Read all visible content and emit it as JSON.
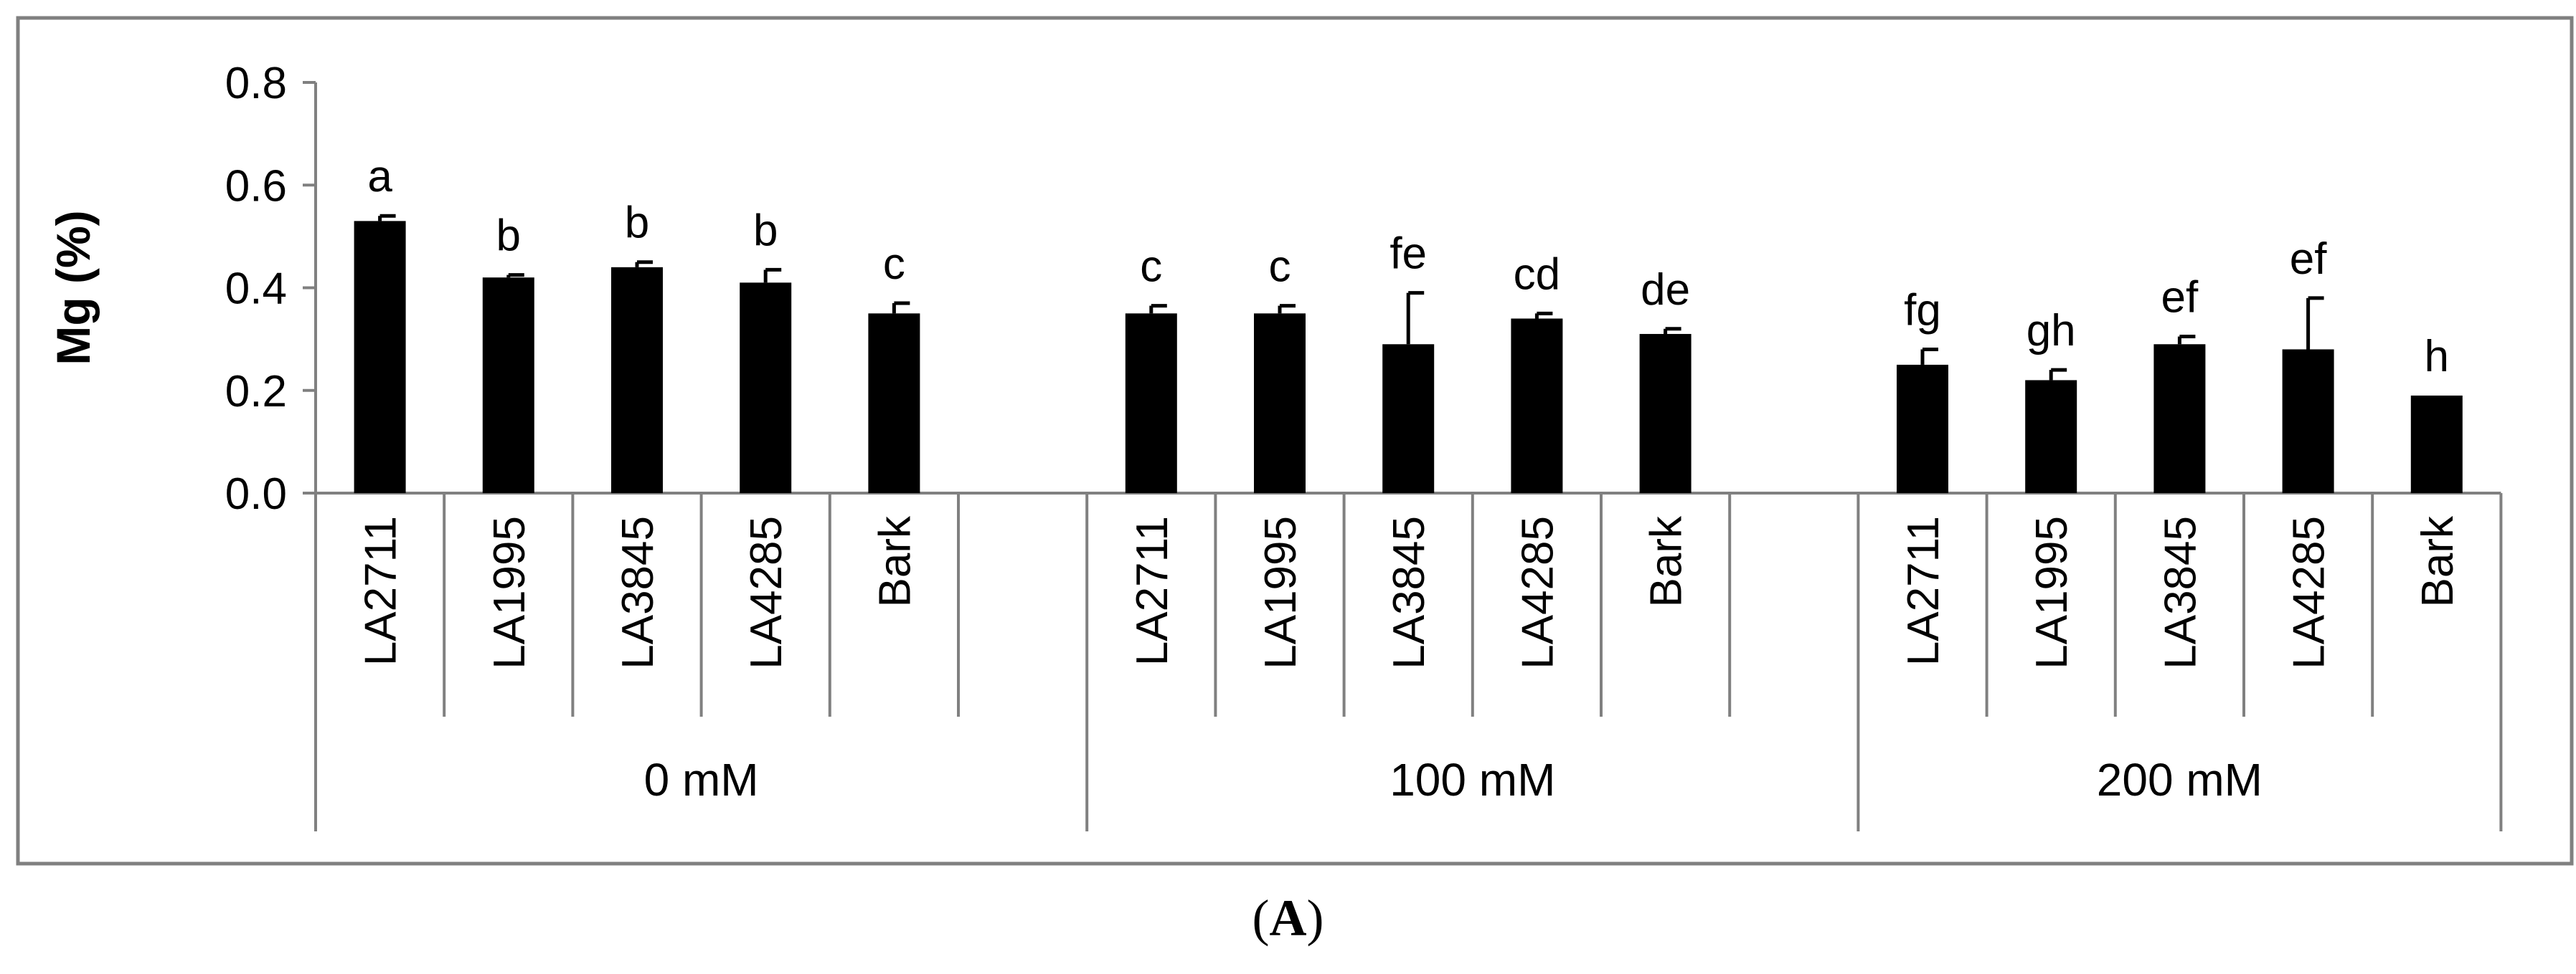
{
  "chart_data": {
    "type": "bar",
    "title": "",
    "xlabel": "",
    "ylabel": "Mg (%)",
    "ylim": [
      0.0,
      0.8
    ],
    "yticks": [
      "0.0",
      "0.2",
      "0.4",
      "0.6",
      "0.8"
    ],
    "ytick_values": [
      0.0,
      0.2,
      0.4,
      0.6,
      0.8
    ],
    "grid": false,
    "legend": "none",
    "bar_color": "#000000",
    "frame_color": "#808080",
    "groups": [
      {
        "label": "0 mM",
        "bars": [
          {
            "category": "LA2711",
            "value": 0.53,
            "error": 0.01,
            "letter": "a"
          },
          {
            "category": "LA1995",
            "value": 0.42,
            "error": 0.005,
            "letter": "b"
          },
          {
            "category": "LA3845",
            "value": 0.44,
            "error": 0.01,
            "letter": "b"
          },
          {
            "category": "LA4285",
            "value": 0.41,
            "error": 0.025,
            "letter": "b"
          },
          {
            "category": "Bark",
            "value": 0.35,
            "error": 0.02,
            "letter": "c"
          }
        ]
      },
      {
        "label": "100 mM",
        "bars": [
          {
            "category": "LA2711",
            "value": 0.35,
            "error": 0.015,
            "letter": "c"
          },
          {
            "category": "LA1995",
            "value": 0.35,
            "error": 0.015,
            "letter": "c"
          },
          {
            "category": "LA3845",
            "value": 0.29,
            "error": 0.1,
            "letter": "fe"
          },
          {
            "category": "LA4285",
            "value": 0.34,
            "error": 0.01,
            "letter": "cd"
          },
          {
            "category": "Bark",
            "value": 0.31,
            "error": 0.01,
            "letter": "de"
          }
        ]
      },
      {
        "label": "200 mM",
        "bars": [
          {
            "category": "LA2711",
            "value": 0.25,
            "error": 0.03,
            "letter": "fg"
          },
          {
            "category": "LA1995",
            "value": 0.22,
            "error": 0.02,
            "letter": "gh"
          },
          {
            "category": "LA3845",
            "value": 0.29,
            "error": 0.015,
            "letter": "ef"
          },
          {
            "category": "LA4285",
            "value": 0.28,
            "error": 0.1,
            "letter": "ef"
          },
          {
            "category": "Bark",
            "value": 0.19,
            "error": 0.0,
            "letter": "h"
          }
        ]
      }
    ]
  },
  "caption": {
    "open": "(",
    "letter": "A",
    "close": ")"
  }
}
